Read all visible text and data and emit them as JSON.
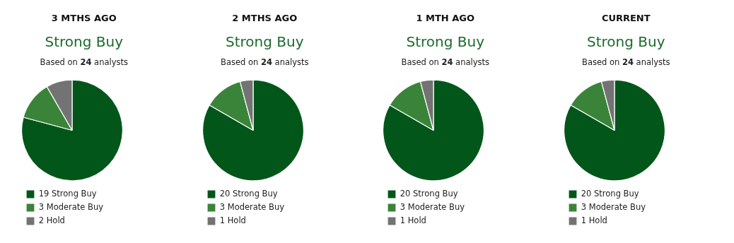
{
  "chart_data": [
    {
      "type": "pie",
      "title": "3 MTHS AGO",
      "subtitle": "Strong Buy",
      "annotations": [
        "Based on 24 analysts"
      ],
      "categories": [
        "19 Strong Buy",
        "3 Moderate Buy",
        "2 Hold"
      ],
      "values": [
        19,
        3,
        2
      ],
      "colors": [
        "#03561a",
        "#3a843a",
        "#737373"
      ],
      "legend": "bottom"
    },
    {
      "type": "pie",
      "title": "2 MTHS AGO",
      "subtitle": "Strong Buy",
      "annotations": [
        "Based on 24 analysts"
      ],
      "categories": [
        "20 Strong Buy",
        "3 Moderate Buy",
        "1 Hold"
      ],
      "values": [
        20,
        3,
        1
      ],
      "colors": [
        "#03561a",
        "#3a843a",
        "#737373"
      ],
      "legend": "bottom"
    },
    {
      "type": "pie",
      "title": "1 MTH AGO",
      "subtitle": "Strong Buy",
      "annotations": [
        "Based on 24 analysts"
      ],
      "categories": [
        "20 Strong Buy",
        "3 Moderate Buy",
        "1 Hold"
      ],
      "values": [
        20,
        3,
        1
      ],
      "colors": [
        "#03561a",
        "#3a843a",
        "#737373"
      ],
      "legend": "bottom"
    },
    {
      "type": "pie",
      "title": "CURRENT",
      "subtitle": "Strong Buy",
      "annotations": [
        "Based on 24 analysts"
      ],
      "categories": [
        "20 Strong Buy",
        "3 Moderate Buy",
        "1 Hold"
      ],
      "values": [
        20,
        3,
        1
      ],
      "colors": [
        "#03561a",
        "#3a843a",
        "#737373"
      ],
      "legend": "bottom"
    }
  ]
}
